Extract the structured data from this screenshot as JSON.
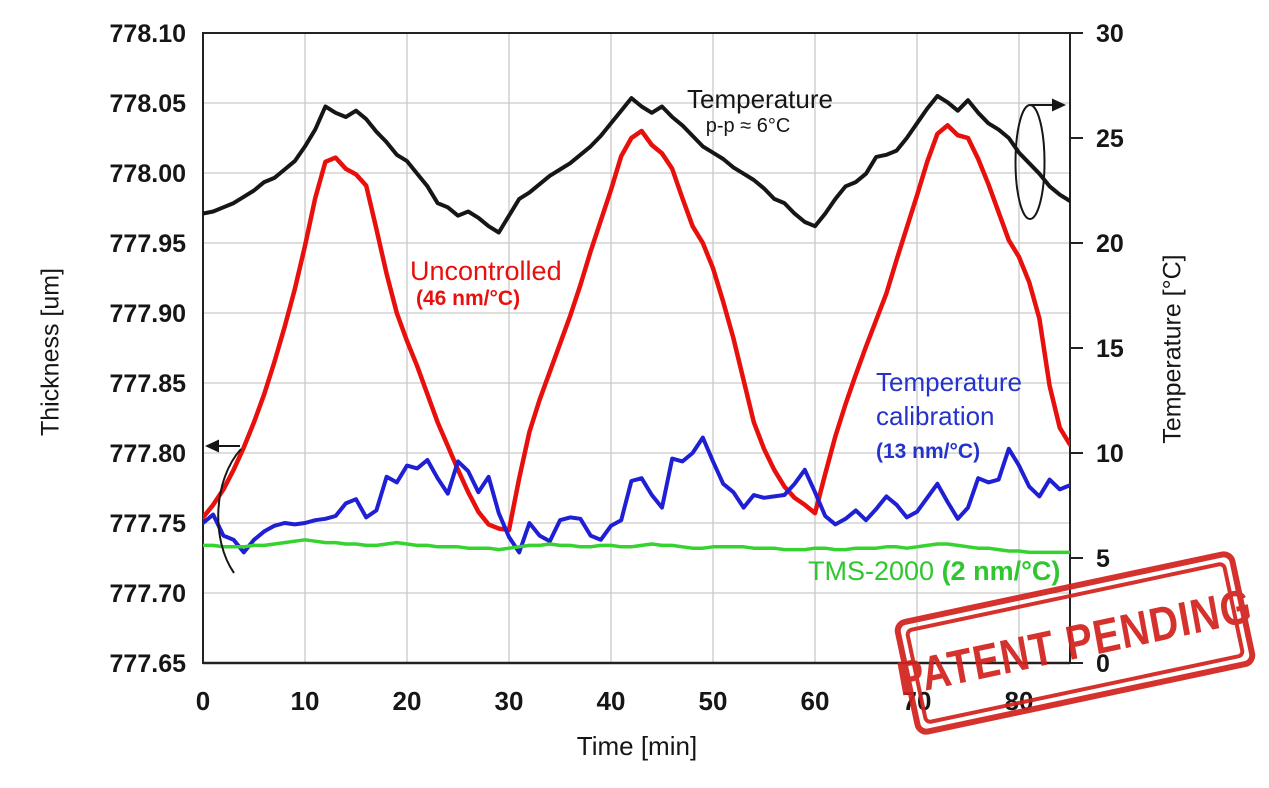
{
  "labels": {
    "x_axis": "Time [min]",
    "y_left_axis": "Thickness [um]",
    "y_right_axis": "Temperature [°C]"
  },
  "annotations": {
    "temperature": {
      "line1": "Temperature",
      "line2": "p-p ≈ 6°C"
    },
    "uncontrolled": {
      "line1": "Uncontrolled",
      "line2": "(46 nm/°C)"
    },
    "calibration": {
      "line1": "Temperature",
      "line2": "calibration",
      "line3": "(13 nm/°C)"
    },
    "tms": {
      "name": "TMS-2000 ",
      "coeff": "(2 nm/°C)"
    }
  },
  "stamp": {
    "text": "PATENT PENDING"
  },
  "colors": {
    "temperature_line": "#161616",
    "uncontrolled_line": "#e8100c",
    "calibration_line": "#1f1fd4",
    "tms_line": "#36d330",
    "stamp": "#d2231f",
    "grid": "#c9c9c9"
  },
  "chart_data": {
    "type": "line",
    "title": "",
    "grid": true,
    "t_step": 1,
    "x": {
      "label": "Time [min]",
      "min": 0,
      "max": 85,
      "ticks": [
        0,
        10,
        20,
        30,
        40,
        50,
        60,
        70,
        80
      ]
    },
    "y_left": {
      "label": "Thickness [um]",
      "min": 777.65,
      "max": 778.1,
      "ticks": [
        "777.65",
        "777.70",
        "777.75",
        "777.80",
        "777.85",
        "777.90",
        "777.95",
        "778.00",
        "778.05",
        "778.10"
      ]
    },
    "y_right": {
      "label": "Temperature [°C]",
      "min": 0,
      "max": 30,
      "ticks": [
        0,
        5,
        10,
        15,
        20,
        25,
        30
      ]
    },
    "series": [
      {
        "name": "Temperature",
        "axis": "right",
        "color": "#161616",
        "width": 4,
        "peak_to_peak": "≈ 6°C",
        "values": [
          21.4,
          21.5,
          21.7,
          21.9,
          22.2,
          22.5,
          22.9,
          23.1,
          23.5,
          23.9,
          24.6,
          25.4,
          26.5,
          26.2,
          26.0,
          26.3,
          25.9,
          25.3,
          24.8,
          24.2,
          23.9,
          23.3,
          22.7,
          21.9,
          21.7,
          21.3,
          21.5,
          21.2,
          20.8,
          20.5,
          21.3,
          22.1,
          22.4,
          22.8,
          23.2,
          23.5,
          23.8,
          24.2,
          24.6,
          25.1,
          25.7,
          26.3,
          26.9,
          26.5,
          26.2,
          26.5,
          26.0,
          25.6,
          25.1,
          24.6,
          24.3,
          24.0,
          23.6,
          23.3,
          23.0,
          22.6,
          22.1,
          21.9,
          21.4,
          21.0,
          20.8,
          21.4,
          22.1,
          22.7,
          22.9,
          23.3,
          24.1,
          24.2,
          24.4,
          25.0,
          25.7,
          26.4,
          27.0,
          26.7,
          26.3,
          26.8,
          26.2,
          25.7,
          25.4,
          25.0,
          24.3,
          23.8,
          23.3,
          22.7,
          22.3,
          22.0
        ]
      },
      {
        "name": "Uncontrolled",
        "axis": "left",
        "color": "#e8100c",
        "width": 4.5,
        "sensitivity": "46 nm/°C",
        "values": [
          777.754,
          777.763,
          777.774,
          777.788,
          777.804,
          777.822,
          777.842,
          777.865,
          777.89,
          777.917,
          777.948,
          777.982,
          778.008,
          778.011,
          778.003,
          777.999,
          777.991,
          777.96,
          777.928,
          777.9,
          777.88,
          777.862,
          777.842,
          777.822,
          777.805,
          777.788,
          777.772,
          777.758,
          777.749,
          777.746,
          777.745,
          777.782,
          777.815,
          777.838,
          777.858,
          777.878,
          777.898,
          777.92,
          777.944,
          777.966,
          777.988,
          778.012,
          778.025,
          778.03,
          778.02,
          778.014,
          778.003,
          777.982,
          777.962,
          777.95,
          777.932,
          777.908,
          777.882,
          777.852,
          777.822,
          777.803,
          777.788,
          777.776,
          777.768,
          777.763,
          777.757,
          777.785,
          777.812,
          777.835,
          777.856,
          777.876,
          777.895,
          777.914,
          777.938,
          777.961,
          777.984,
          778.008,
          778.028,
          778.034,
          778.027,
          778.025,
          778.01,
          777.992,
          777.972,
          777.952,
          777.94,
          777.922,
          777.896,
          777.848,
          777.818,
          777.806
        ]
      },
      {
        "name": "Temperature calibration",
        "axis": "left",
        "color": "#1f1fd4",
        "width": 4,
        "sensitivity": "13 nm/°C",
        "values": [
          777.75,
          777.756,
          777.741,
          777.738,
          777.729,
          777.738,
          777.744,
          777.748,
          777.75,
          777.749,
          777.75,
          777.752,
          777.753,
          777.755,
          777.764,
          777.767,
          777.754,
          777.759,
          777.783,
          777.779,
          777.791,
          777.789,
          777.795,
          777.782,
          777.771,
          777.794,
          777.787,
          777.772,
          777.783,
          777.757,
          777.74,
          777.729,
          777.75,
          777.741,
          777.737,
          777.752,
          777.754,
          777.753,
          777.741,
          777.738,
          777.748,
          777.752,
          777.78,
          777.782,
          777.77,
          777.761,
          777.796,
          777.794,
          777.8,
          777.811,
          777.794,
          777.778,
          777.772,
          777.761,
          777.77,
          777.768,
          777.769,
          777.77,
          777.778,
          777.788,
          777.772,
          777.755,
          777.749,
          777.753,
          777.759,
          777.752,
          777.76,
          777.769,
          777.763,
          777.754,
          777.758,
          777.768,
          777.778,
          777.765,
          777.753,
          777.761,
          777.782,
          777.779,
          777.781,
          777.803,
          777.791,
          777.776,
          777.769,
          777.781,
          777.774,
          777.777
        ]
      },
      {
        "name": "TMS-2000",
        "axis": "left",
        "color": "#36d330",
        "width": 3.5,
        "sensitivity": "2 nm/°C",
        "values": [
          777.734,
          777.734,
          777.733,
          777.733,
          777.733,
          777.734,
          777.734,
          777.735,
          777.736,
          777.737,
          777.738,
          777.737,
          777.736,
          777.736,
          777.735,
          777.735,
          777.734,
          777.734,
          777.735,
          777.736,
          777.735,
          777.734,
          777.734,
          777.733,
          777.733,
          777.733,
          777.732,
          777.732,
          777.732,
          777.731,
          777.732,
          777.733,
          777.734,
          777.734,
          777.735,
          777.734,
          777.734,
          777.733,
          777.733,
          777.734,
          777.734,
          777.733,
          777.733,
          777.734,
          777.735,
          777.734,
          777.734,
          777.733,
          777.732,
          777.732,
          777.733,
          777.733,
          777.733,
          777.733,
          777.732,
          777.732,
          777.732,
          777.731,
          777.731,
          777.731,
          777.732,
          777.732,
          777.731,
          777.731,
          777.732,
          777.732,
          777.732,
          777.733,
          777.733,
          777.732,
          777.733,
          777.734,
          777.735,
          777.735,
          777.734,
          777.733,
          777.732,
          777.732,
          777.731,
          777.73,
          777.73,
          777.729,
          777.729,
          777.729,
          777.729,
          777.729
        ]
      }
    ]
  }
}
